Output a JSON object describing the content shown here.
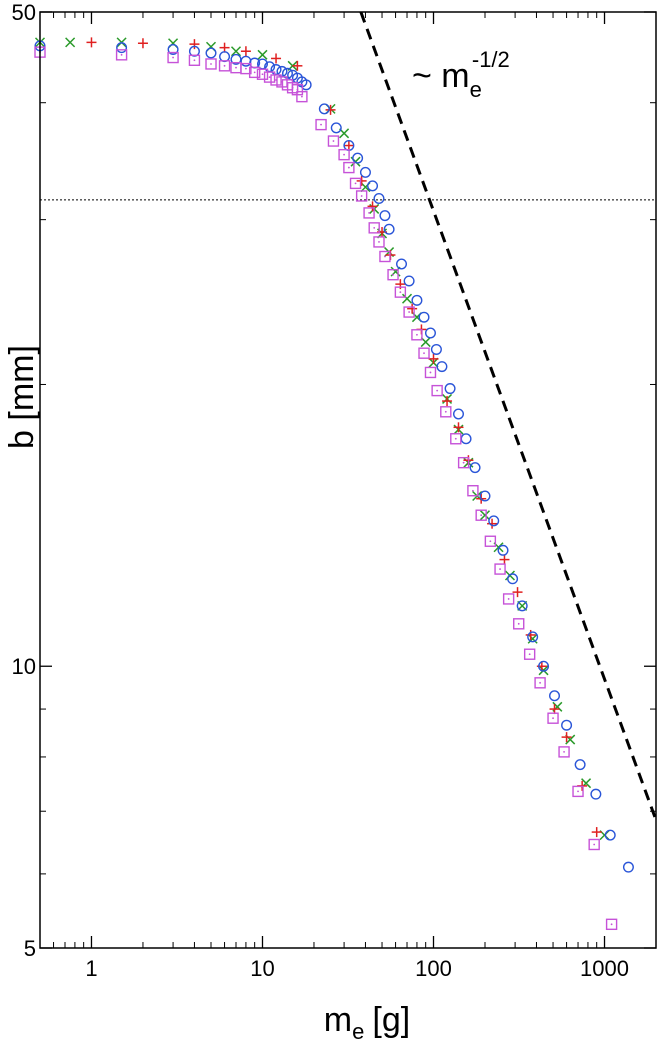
{
  "chart_data": {
    "type": "scatter",
    "xlabel": "m",
    "xlabel_sub": "e",
    "xlabel_unit": "[g]",
    "ylabel": "b [mm]",
    "xscale": "log",
    "yscale": "log",
    "xlim": [
      0.5,
      2000
    ],
    "ylim": [
      5,
      50
    ],
    "x_ticks": [
      1,
      10,
      100,
      1000
    ],
    "x_tick_labels": [
      "1",
      "10",
      "100",
      "1000"
    ],
    "y_ticks": [
      5,
      10,
      50
    ],
    "y_tick_labels": [
      "5",
      "10",
      "50"
    ],
    "grid": false,
    "legend": "none",
    "annotation": {
      "prefix": "~ m",
      "sub": "e",
      "sup": "-1/2"
    },
    "reference_lines": [
      {
        "kind": "horizontal-dotted",
        "y": 31.5
      },
      {
        "kind": "power-law-dashed",
        "exponent": -0.5,
        "points": [
          [
            37.6,
            50
          ],
          [
            2000,
            6.85
          ]
        ]
      }
    ],
    "series": [
      {
        "marker": "x",
        "color": "#2a9a2a",
        "points": [
          [
            0.5,
            46.4
          ],
          [
            0.75,
            46.4
          ],
          [
            1.5,
            46.4
          ],
          [
            3,
            46.3
          ],
          [
            5,
            45.9
          ],
          [
            7,
            45.4
          ],
          [
            10,
            45.0
          ],
          [
            15,
            43.8
          ],
          [
            25,
            39.4
          ],
          [
            30,
            37.1
          ],
          [
            35,
            34.6
          ],
          [
            40,
            32.5
          ],
          [
            45,
            30.8
          ],
          [
            50,
            29.0
          ],
          [
            55,
            27.7
          ],
          [
            60,
            26.4
          ],
          [
            70,
            24.7
          ],
          [
            80,
            23.6
          ],
          [
            90,
            22.2
          ],
          [
            100,
            21.1
          ],
          [
            120,
            19.3
          ],
          [
            140,
            17.9
          ],
          [
            160,
            16.5
          ],
          [
            180,
            15.2
          ],
          [
            200,
            14.5
          ],
          [
            240,
            13.4
          ],
          [
            280,
            12.5
          ],
          [
            330,
            11.6
          ],
          [
            380,
            10.7
          ],
          [
            440,
            9.9
          ],
          [
            530,
            9.05
          ],
          [
            630,
            8.35
          ],
          [
            780,
            7.5
          ],
          [
            1000,
            6.6
          ]
        ]
      },
      {
        "marker": "+",
        "color": "#e02020",
        "points": [
          [
            1,
            46.4
          ],
          [
            2,
            46.3
          ],
          [
            4,
            46.2
          ],
          [
            6,
            45.8
          ],
          [
            8,
            45.4
          ],
          [
            12,
            44.6
          ],
          [
            16,
            43.8
          ],
          [
            25,
            39.3
          ],
          [
            32,
            36.0
          ],
          [
            38,
            33.0
          ],
          [
            44,
            31.0
          ],
          [
            50,
            29.1
          ],
          [
            56,
            27.5
          ],
          [
            64,
            25.6
          ],
          [
            75,
            24.1
          ],
          [
            85,
            22.9
          ],
          [
            100,
            21.3
          ],
          [
            120,
            19.2
          ],
          [
            140,
            18.0
          ],
          [
            160,
            16.6
          ],
          [
            190,
            15.1
          ],
          [
            220,
            14.2
          ],
          [
            260,
            13.0
          ],
          [
            310,
            12.0
          ],
          [
            370,
            10.8
          ],
          [
            430,
            10.0
          ],
          [
            510,
            9.0
          ],
          [
            600,
            8.4
          ],
          [
            740,
            7.45
          ],
          [
            900,
            6.65
          ]
        ]
      },
      {
        "marker": "circle",
        "color": "#2a55d8",
        "points": [
          [
            0.5,
            46.0
          ],
          [
            1.5,
            45.8
          ],
          [
            3,
            45.6
          ],
          [
            4,
            45.4
          ],
          [
            5,
            45.2
          ],
          [
            6,
            44.8
          ],
          [
            7,
            44.5
          ],
          [
            8,
            44.3
          ],
          [
            9,
            44.1
          ],
          [
            10,
            44.0
          ],
          [
            11,
            43.7
          ],
          [
            12,
            43.4
          ],
          [
            13,
            43.2
          ],
          [
            14,
            43.0
          ],
          [
            15,
            42.8
          ],
          [
            16,
            42.5
          ],
          [
            17,
            42.1
          ],
          [
            18,
            41.8
          ],
          [
            23,
            39.4
          ],
          [
            27,
            37.6
          ],
          [
            32,
            36.0
          ],
          [
            36,
            34.9
          ],
          [
            40,
            33.7
          ],
          [
            44,
            32.6
          ],
          [
            48,
            31.6
          ],
          [
            52,
            30.3
          ],
          [
            55,
            29.3
          ],
          [
            65,
            26.9
          ],
          [
            72,
            25.8
          ],
          [
            80,
            24.6
          ],
          [
            88,
            23.6
          ],
          [
            96,
            22.7
          ],
          [
            104,
            21.8
          ],
          [
            112,
            20.9
          ],
          [
            125,
            19.8
          ],
          [
            140,
            18.6
          ],
          [
            155,
            17.5
          ],
          [
            175,
            16.3
          ],
          [
            200,
            15.2
          ],
          [
            225,
            14.3
          ],
          [
            255,
            13.3
          ],
          [
            290,
            12.4
          ],
          [
            330,
            11.6
          ],
          [
            380,
            10.75
          ],
          [
            440,
            10.0
          ],
          [
            510,
            9.3
          ],
          [
            600,
            8.65
          ],
          [
            720,
            7.85
          ],
          [
            890,
            7.3
          ],
          [
            1080,
            6.6
          ],
          [
            1380,
            6.1
          ]
        ]
      },
      {
        "marker": "square",
        "color": "#c652d8",
        "points": [
          [
            0.5,
            45.3
          ],
          [
            1.5,
            45.0
          ],
          [
            3,
            44.7
          ],
          [
            4,
            44.4
          ],
          [
            5,
            44.0
          ],
          [
            6,
            43.8
          ],
          [
            7,
            43.6
          ],
          [
            8,
            43.5
          ],
          [
            9,
            43.1
          ],
          [
            10,
            42.9
          ],
          [
            11,
            42.6
          ],
          [
            12,
            42.3
          ],
          [
            13,
            42.1
          ],
          [
            14,
            41.8
          ],
          [
            15,
            41.5
          ],
          [
            16,
            41.3
          ],
          [
            17,
            40.6
          ],
          [
            22,
            37.9
          ],
          [
            26,
            36.4
          ],
          [
            30,
            35.2
          ],
          [
            32,
            34.1
          ],
          [
            35,
            32.8
          ],
          [
            38,
            31.8
          ],
          [
            42,
            30.5
          ],
          [
            45,
            29.4
          ],
          [
            48,
            28.4
          ],
          [
            52,
            27.4
          ],
          [
            58,
            26.2
          ],
          [
            64,
            25.1
          ],
          [
            72,
            23.9
          ],
          [
            80,
            22.6
          ],
          [
            88,
            21.6
          ],
          [
            96,
            20.6
          ],
          [
            105,
            19.7
          ],
          [
            118,
            18.7
          ],
          [
            135,
            17.5
          ],
          [
            150,
            16.5
          ],
          [
            170,
            15.4
          ],
          [
            190,
            14.5
          ],
          [
            215,
            13.6
          ],
          [
            245,
            12.7
          ],
          [
            275,
            11.8
          ],
          [
            315,
            11.1
          ],
          [
            365,
            10.3
          ],
          [
            420,
            9.6
          ],
          [
            500,
            8.8
          ],
          [
            580,
            8.1
          ],
          [
            700,
            7.35
          ],
          [
            870,
            6.45
          ],
          [
            1100,
            5.3
          ]
        ]
      }
    ]
  }
}
